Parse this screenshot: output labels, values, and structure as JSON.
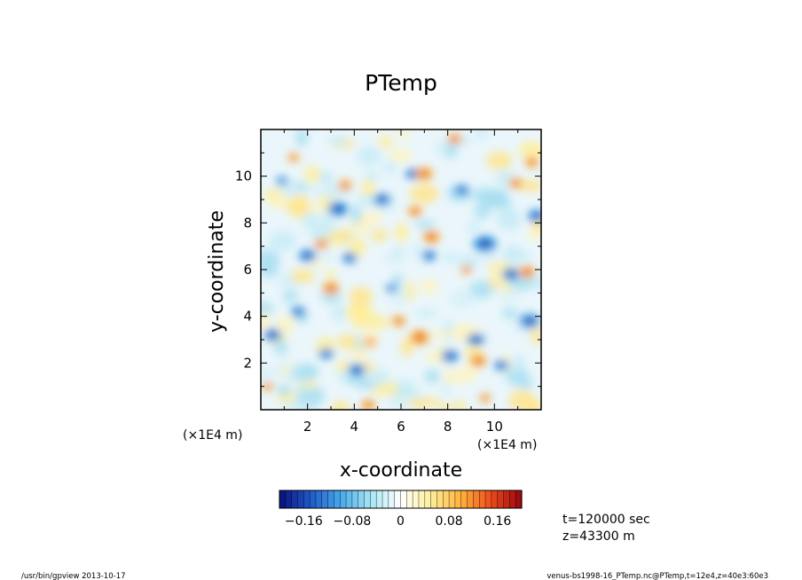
{
  "chart_data": {
    "type": "heatmap",
    "title": "PTemp",
    "xlabel": "x-coordinate",
    "ylabel": "y-coordinate",
    "x_unit_label": "(×1E4 m)",
    "y_unit_label": "(×1E4 m)",
    "xlim": [
      0,
      12
    ],
    "ylim": [
      0,
      12
    ],
    "x_ticks": [
      2,
      4,
      6,
      8,
      10
    ],
    "y_ticks": [
      2,
      4,
      6,
      8,
      10
    ],
    "x_tick_labels": [
      "2",
      "4",
      "6",
      "8",
      "10"
    ],
    "y_tick_labels": [
      "2",
      "4",
      "6",
      "8",
      "10"
    ],
    "colorbar": {
      "range": [
        -0.2,
        0.2
      ],
      "levels": 40,
      "ticks": [
        -0.16,
        -0.08,
        0,
        0.08,
        0.16
      ],
      "tick_labels": [
        "−0.16",
        "−0.08",
        "0",
        "0.08",
        "0.16"
      ],
      "colors": [
        "#08107a",
        "#1f57c8",
        "#45a8ea",
        "#a6e6f4",
        "#ffffff",
        "#ffef9a",
        "#ffb23a",
        "#ec4a1a",
        "#98040e"
      ]
    },
    "field_features": {
      "cold": [
        [
          3.3,
          8.6,
          0.35
        ],
        [
          2.0,
          6.6,
          0.3
        ],
        [
          9.6,
          7.1,
          0.4
        ],
        [
          11.8,
          8.3,
          0.3
        ],
        [
          11.5,
          3.8,
          0.35
        ],
        [
          0.5,
          3.2,
          0.3
        ],
        [
          4.1,
          1.7,
          0.3
        ],
        [
          8.1,
          2.3,
          0.3
        ],
        [
          5.2,
          9.0,
          0.3
        ],
        [
          9.2,
          3.0,
          0.3
        ],
        [
          10.7,
          5.8,
          0.3
        ],
        [
          1.6,
          4.2,
          0.25
        ],
        [
          7.2,
          6.6,
          0.25
        ],
        [
          6.5,
          10.1,
          0.25
        ],
        [
          3.8,
          6.5,
          0.25
        ],
        [
          8.6,
          9.4,
          0.25
        ],
        [
          10.3,
          1.9,
          0.25
        ],
        [
          2.8,
          2.4,
          0.25
        ],
        [
          5.6,
          5.2,
          0.2
        ],
        [
          0.9,
          9.8,
          0.2
        ]
      ],
      "warm": [
        [
          6.8,
          3.1,
          0.35
        ],
        [
          3.0,
          5.2,
          0.3
        ],
        [
          7.3,
          7.4,
          0.3
        ],
        [
          9.3,
          2.1,
          0.3
        ],
        [
          11.4,
          5.9,
          0.3
        ],
        [
          7.0,
          10.1,
          0.3
        ],
        [
          6.6,
          8.5,
          0.25
        ],
        [
          4.6,
          0.2,
          0.25
        ],
        [
          2.6,
          7.1,
          0.25
        ],
        [
          5.9,
          3.8,
          0.25
        ],
        [
          3.6,
          9.6,
          0.25
        ],
        [
          10.9,
          9.7,
          0.25
        ],
        [
          0.3,
          1.0,
          0.2
        ],
        [
          11.6,
          10.6,
          0.25
        ],
        [
          8.3,
          11.6,
          0.25
        ],
        [
          9.6,
          0.5,
          0.2
        ],
        [
          1.4,
          10.8,
          0.2
        ],
        [
          4.7,
          2.9,
          0.2
        ],
        [
          8.8,
          6.0,
          0.2
        ]
      ]
    }
  },
  "info": {
    "time_label": "t=120000 sec",
    "z_label": "z=43300 m"
  },
  "footer": {
    "left": "/usr/bin/gpview   2013-10-17",
    "right": "venus-bs1998-16_PTemp.nc@PTemp,t=12e4,z=40e3:60e3"
  }
}
